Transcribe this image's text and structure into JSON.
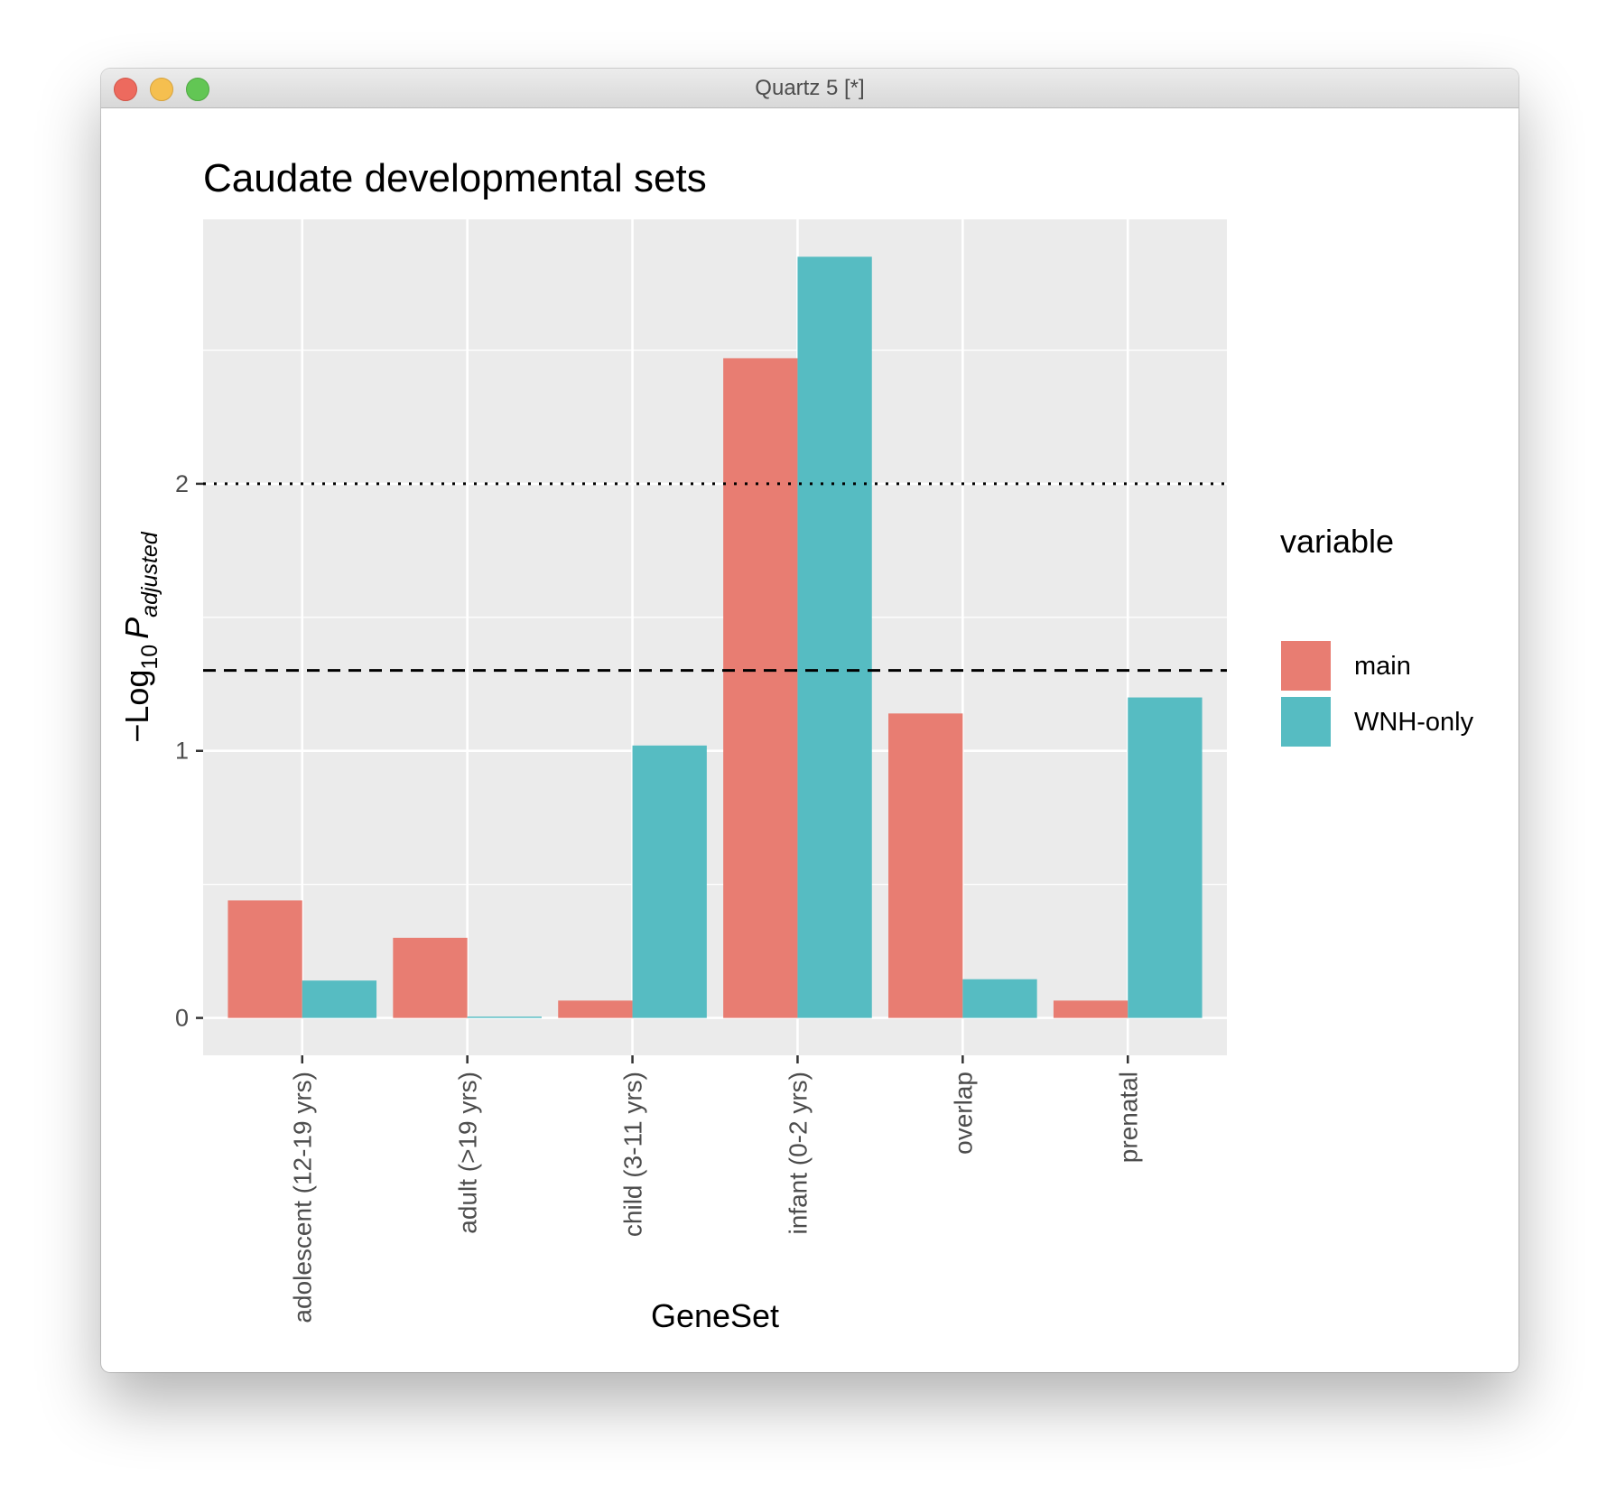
{
  "window": {
    "title": "Quartz 5 [*]",
    "buttons": {
      "close": "close",
      "minimize": "minimize",
      "zoom": "zoom"
    }
  },
  "chart_data": {
    "type": "bar",
    "title": "Caudate developmental sets",
    "xlabel": "GeneSet",
    "ylabel": {
      "prefix": "−Log",
      "subscript": "10",
      "symbol": "P",
      "symbol_subscript": "adjusted"
    },
    "categories": [
      "adolescent (12-19 yrs)",
      "adult (>19 yrs)",
      "child (3-11 yrs)",
      "infant (0-2 yrs)",
      "overlap",
      "prenatal"
    ],
    "series": [
      {
        "name": "main",
        "color": "#E87D72",
        "values": [
          0.44,
          0.3,
          0.065,
          2.47,
          1.14,
          0.065
        ]
      },
      {
        "name": "WNH-only",
        "color": "#56BCC2",
        "values": [
          0.14,
          0.005,
          1.02,
          2.85,
          0.145,
          1.2
        ]
      }
    ],
    "ylim": [
      -0.14,
      2.99
    ],
    "yticks": [
      0,
      1,
      2
    ],
    "reference_lines": [
      {
        "value": 2,
        "style": "dotted"
      },
      {
        "value": 1.301,
        "style": "dashed"
      }
    ],
    "legend": {
      "title": "variable",
      "position": "right"
    },
    "grid": true,
    "panel_background": "#EBEBEB"
  }
}
